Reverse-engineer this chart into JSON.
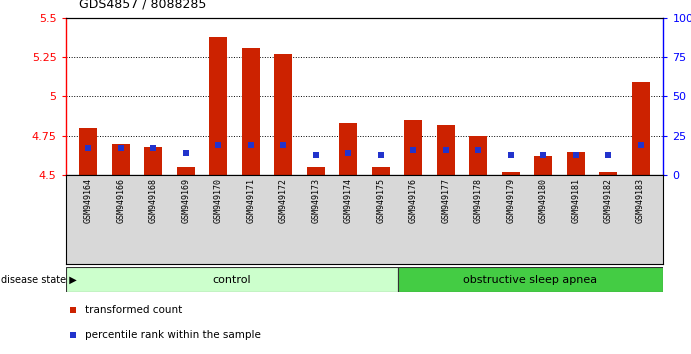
{
  "title": "GDS4857 / 8088285",
  "samples": [
    "GSM949164",
    "GSM949166",
    "GSM949168",
    "GSM949169",
    "GSM949170",
    "GSM949171",
    "GSM949172",
    "GSM949173",
    "GSM949174",
    "GSM949175",
    "GSM949176",
    "GSM949177",
    "GSM949178",
    "GSM949179",
    "GSM949180",
    "GSM949181",
    "GSM949182",
    "GSM949183"
  ],
  "transformed_count": [
    4.8,
    4.7,
    4.68,
    4.55,
    5.38,
    5.31,
    5.27,
    4.55,
    4.83,
    4.55,
    4.85,
    4.82,
    4.75,
    4.52,
    4.62,
    4.65,
    4.52,
    5.09
  ],
  "percentile_rank": [
    17,
    17,
    17,
    14,
    19,
    19,
    19,
    13,
    14,
    13,
    16,
    16,
    16,
    13,
    13,
    13,
    13,
    19
  ],
  "baseline": 4.5,
  "ylim_left": [
    4.5,
    5.5
  ],
  "ylim_right": [
    0,
    100
  ],
  "yticks_left": [
    4.5,
    4.75,
    5.0,
    5.25,
    5.5
  ],
  "yticks_right": [
    0,
    25,
    50,
    75,
    100
  ],
  "bar_color": "#cc2200",
  "dot_color": "#2233cc",
  "control_color": "#ccffcc",
  "apnea_color": "#44cc44",
  "control_label": "control",
  "apnea_label": "obstructive sleep apnea",
  "n_control": 10,
  "n_total": 18,
  "background_color": "#ffffff",
  "label_bg_color": "#d8d8d8",
  "band_border_color": "#333333"
}
